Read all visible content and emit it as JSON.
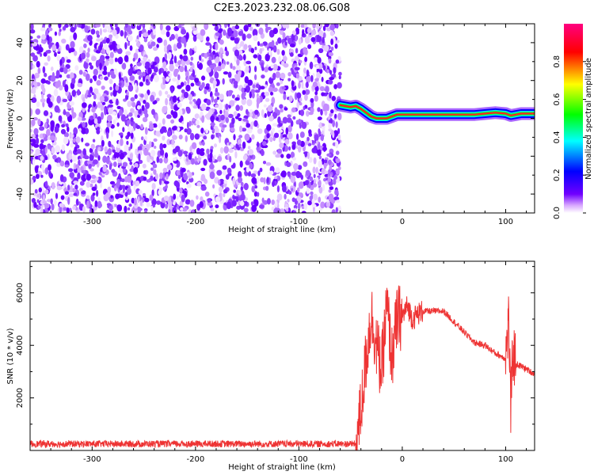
{
  "title": "C2E3.2023.232.08.06.G08",
  "chart_data": [
    {
      "type": "heatmap",
      "xlabel": "Height of straight line (km)",
      "ylabel": "Frequency (Hz)",
      "xlim": [
        -360,
        128
      ],
      "ylim": [
        -50,
        50
      ],
      "xticks": [
        -300,
        -200,
        -100,
        0,
        100
      ],
      "yticks": [
        -40,
        -20,
        0,
        20,
        40
      ],
      "grid": false,
      "noise_region_x": [
        -360,
        -60
      ],
      "trace": {
        "x": [
          -60,
          -55,
          -50,
          -45,
          -40,
          -35,
          -30,
          -25,
          -20,
          -15,
          -10,
          -5,
          0,
          10,
          20,
          30,
          40,
          50,
          60,
          70,
          80,
          90,
          100,
          105,
          110,
          115,
          120,
          128
        ],
        "y": [
          7,
          6.5,
          6,
          6.5,
          5,
          3,
          1,
          0,
          0,
          0,
          1,
          2,
          2,
          2,
          2,
          2,
          2,
          2,
          2,
          2,
          2.5,
          3,
          2.5,
          1.5,
          2,
          2.5,
          2.5,
          2.5
        ]
      },
      "colorbar": {
        "label": "Normalized spectral amplitude",
        "ticks": [
          0.0,
          0.2,
          0.4,
          0.6,
          0.8
        ],
        "range": [
          0,
          1
        ],
        "colormap": [
          "#ffffff",
          "#7000ff",
          "#0000ff",
          "#00ffff",
          "#00ff00",
          "#ffff00",
          "#ff0000",
          "#ff0080"
        ]
      }
    },
    {
      "type": "line",
      "xlabel": "Height of straight line (km)",
      "ylabel": "SNR (10 * v/v)",
      "xlim": [
        -360,
        128
      ],
      "ylim": [
        0,
        7200
      ],
      "xticks": [
        -300,
        -200,
        -100,
        0,
        100
      ],
      "yticks": [
        2000,
        4000,
        6000
      ],
      "grid": false,
      "series": [
        {
          "color": "#ee3333",
          "x": [
            -360,
            -300,
            -200,
            -100,
            -45,
            -40,
            -35,
            -30,
            -25,
            -20,
            -15,
            -10,
            -5,
            0,
            5,
            10,
            15,
            20,
            30,
            40,
            50,
            60,
            70,
            80,
            90,
            100,
            103,
            105,
            107,
            110,
            120,
            128
          ],
          "y": [
            200,
            200,
            200,
            200,
            250,
            1500,
            3500,
            5200,
            4000,
            3000,
            5500,
            3500,
            5000,
            5100,
            5500,
            5000,
            5200,
            5300,
            5300,
            5300,
            4900,
            4500,
            4100,
            4000,
            3700,
            3500,
            5000,
            1500,
            3800,
            3300,
            3100,
            2900
          ]
        }
      ]
    }
  ]
}
